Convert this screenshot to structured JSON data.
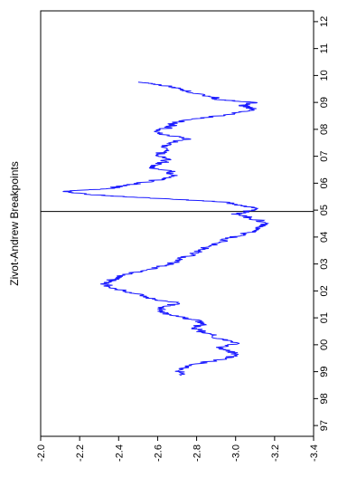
{
  "chart_data": {
    "type": "line",
    "title": "Zivot-Andrew Breakpoints",
    "xlabel": "",
    "ylabel": "",
    "orientation": "rotated-90-clockwise",
    "x_ticks": [
      "97",
      "98",
      "99",
      "00",
      "01",
      "02",
      "03",
      "04",
      "05",
      "06",
      "07",
      "08",
      "09",
      "10",
      "11",
      "12"
    ],
    "y_ticks": [
      "-2.0",
      "-2.2",
      "-2.4",
      "-2.6",
      "-2.8",
      "-3.0",
      "-3.2",
      "-3.4"
    ],
    "xlim": [
      1996.6,
      2012.4
    ],
    "ylim": [
      -2.0,
      -3.4
    ],
    "grid": false,
    "series": [
      {
        "color": "#1a1aff",
        "x": [
          1998.85,
          1999.05,
          1999.25,
          1999.45,
          1999.6,
          1999.75,
          1999.9,
          2000.05,
          2000.2,
          2000.35,
          2000.5,
          2000.65,
          2000.8,
          2000.95,
          2001.1,
          2001.25,
          2001.4,
          2001.55,
          2001.7,
          2001.85,
          2002.0,
          2002.15,
          2002.3,
          2002.45,
          2002.6,
          2002.75,
          2002.9,
          2003.05,
          2003.2,
          2003.35,
          2003.5,
          2003.65,
          2003.8,
          2003.95,
          2004.1,
          2004.25,
          2004.4,
          2004.55,
          2004.7,
          2004.85,
          2004.92,
          2005.0,
          2005.1,
          2005.2,
          2005.3,
          2005.4,
          2005.5,
          2005.6,
          2005.7,
          2005.8,
          2005.9,
          2006.0,
          2006.15,
          2006.3,
          2006.45,
          2006.6,
          2006.75,
          2006.9,
          2007.05,
          2007.2,
          2007.35,
          2007.5,
          2007.65,
          2007.8,
          2007.95,
          2008.1,
          2008.25,
          2008.4,
          2008.55,
          2008.7,
          2008.8,
          2008.9,
          2009.0,
          2009.1,
          2009.2,
          2009.35,
          2009.5,
          2009.65,
          2009.75
        ],
        "y": [
          -2.72,
          -2.71,
          -2.76,
          -2.93,
          -3.0,
          -2.98,
          -2.9,
          -3.02,
          -2.93,
          -2.88,
          -2.82,
          -2.79,
          -2.84,
          -2.77,
          -2.66,
          -2.6,
          -2.63,
          -2.7,
          -2.57,
          -2.53,
          -2.43,
          -2.35,
          -2.33,
          -2.38,
          -2.43,
          -2.52,
          -2.61,
          -2.68,
          -2.72,
          -2.78,
          -2.82,
          -2.86,
          -2.92,
          -2.96,
          -3.04,
          -3.1,
          -3.12,
          -3.15,
          -3.08,
          -3.0,
          -3.04,
          -3.08,
          -3.1,
          -3.0,
          -2.95,
          -2.68,
          -2.42,
          -2.23,
          -2.12,
          -2.35,
          -2.42,
          -2.5,
          -2.62,
          -2.68,
          -2.66,
          -2.56,
          -2.62,
          -2.66,
          -2.6,
          -2.64,
          -2.62,
          -2.66,
          -2.76,
          -2.63,
          -2.6,
          -2.67,
          -2.68,
          -2.8,
          -2.96,
          -3.07,
          -3.08,
          -3.03,
          -3.1,
          -2.92,
          -2.88,
          -2.78,
          -2.72,
          -2.62,
          -2.5
        ]
      }
    ],
    "vertical_marker": {
      "x": 2004.95,
      "color": "#000000"
    }
  }
}
